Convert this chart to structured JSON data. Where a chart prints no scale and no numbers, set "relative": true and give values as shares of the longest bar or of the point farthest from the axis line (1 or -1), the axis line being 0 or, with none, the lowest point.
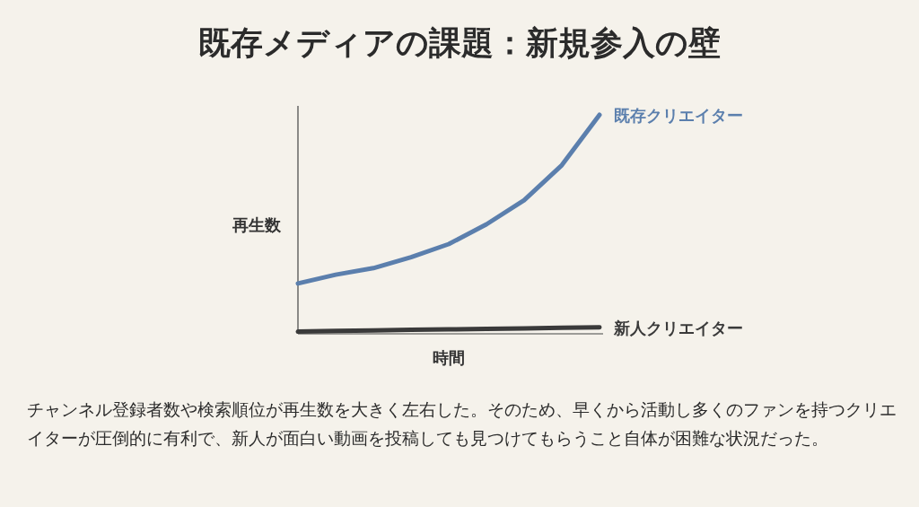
{
  "chart_data": {
    "type": "line",
    "title": "既存メディアの課題：新規参入の壁",
    "xlabel": "時間",
    "ylabel": "再生数",
    "relative": true,
    "categories": [
      null,
      null,
      null,
      null,
      null,
      null,
      null,
      null,
      null
    ],
    "series": [
      {
        "name": "既存クリエイター",
        "color": "#5b7fad",
        "values": [
          0.23,
          0.27,
          0.3,
          0.35,
          0.41,
          0.5,
          0.61,
          0.77,
          1.0
        ]
      },
      {
        "name": "新人クリエイター",
        "color": "#3a3a3a",
        "values": [
          0.01,
          0.013,
          0.015,
          0.018,
          0.02,
          0.023,
          0.025,
          0.028,
          0.03
        ]
      }
    ],
    "annotations": [
      "チャンネル登録者数や検索順位が再生数を大きく左右した。そのため、早くから活動し多くのファンを持つクリエイターが圧倒的に有利で、新人が面白い動画を投稿しても見つけてもらうこと自体が困難な状況だった。"
    ]
  }
}
